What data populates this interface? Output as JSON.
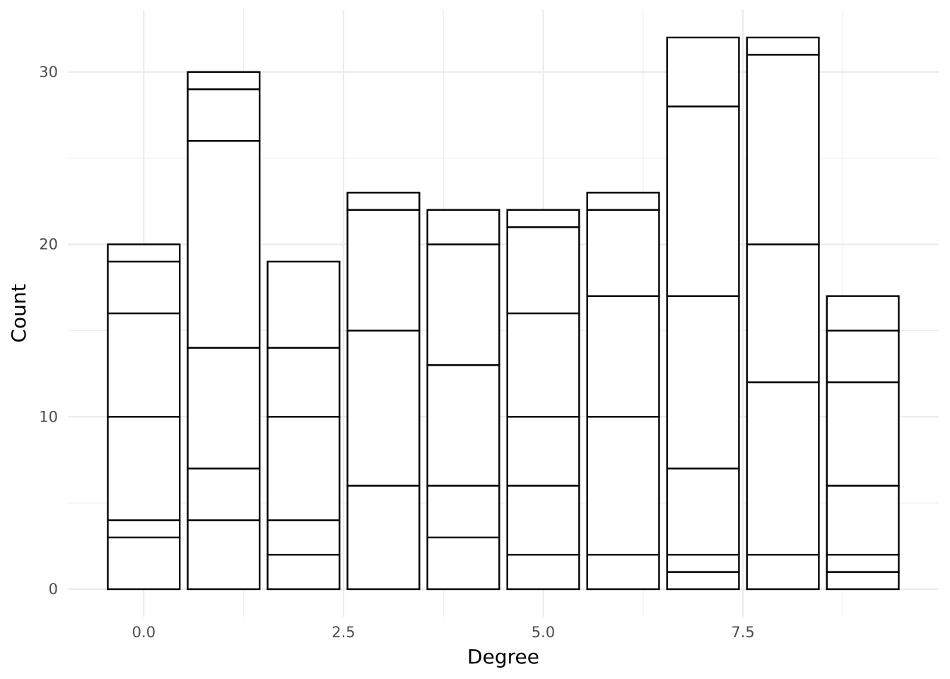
{
  "chart_data": {
    "type": "bar",
    "xlabel": "Degree",
    "ylabel": "Count",
    "xlim": [
      -0.95,
      9.95
    ],
    "ylim": [
      -1.6,
      33.6
    ],
    "x_ticks": [
      0,
      2.5,
      5,
      7.5
    ],
    "x_tick_labels": [
      "0.0",
      "2.5",
      "5.0",
      "7.5"
    ],
    "y_ticks": [
      0,
      10,
      20,
      30
    ],
    "y_tick_labels": [
      "0",
      "10",
      "20",
      "30"
    ],
    "bar_width": 0.9,
    "grid": true,
    "bar_fill": "#ffffff",
    "bar_outline": "#000000",
    "grid_color": "#ebebeb",
    "bars": [
      {
        "x": 0,
        "total": 20,
        "boundaries": [
          3,
          4,
          10,
          16,
          19,
          20
        ]
      },
      {
        "x": 1,
        "total": 30,
        "boundaries": [
          4,
          7,
          14,
          26,
          29,
          30
        ]
      },
      {
        "x": 2,
        "total": 19,
        "boundaries": [
          2,
          4,
          10,
          14,
          19
        ]
      },
      {
        "x": 3,
        "total": 23,
        "boundaries": [
          6,
          15,
          22,
          23
        ]
      },
      {
        "x": 4,
        "total": 22,
        "boundaries": [
          3,
          6,
          13,
          20,
          22
        ]
      },
      {
        "x": 5,
        "total": 22,
        "boundaries": [
          2,
          6,
          10,
          16,
          21,
          22
        ]
      },
      {
        "x": 6,
        "total": 23,
        "boundaries": [
          2,
          10,
          17,
          22,
          23
        ]
      },
      {
        "x": 7,
        "total": 32,
        "boundaries": [
          1,
          2,
          7,
          17,
          28,
          32
        ]
      },
      {
        "x": 8,
        "total": 32,
        "boundaries": [
          2,
          12,
          20,
          31,
          32
        ]
      },
      {
        "x": 9,
        "total": 17,
        "boundaries": [
          1,
          2,
          6,
          12,
          15,
          17
        ]
      }
    ]
  }
}
